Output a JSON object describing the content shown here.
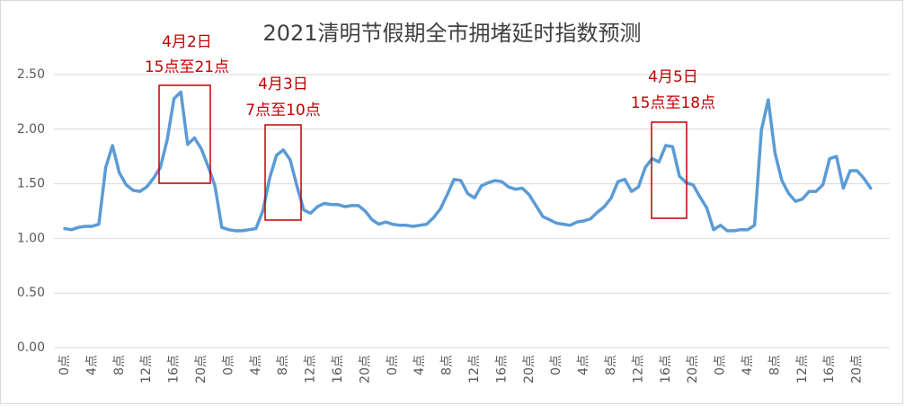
{
  "chart_data": {
    "type": "line",
    "title": "2021清明节假期全市拥堵延时指数预测",
    "categories": [
      "0点",
      null,
      null,
      null,
      "4点",
      null,
      null,
      null,
      "8点",
      null,
      null,
      null,
      "12点",
      null,
      null,
      null,
      "16点",
      null,
      null,
      null,
      "20点",
      null,
      null,
      null,
      "0点",
      null,
      null,
      null,
      "4点",
      null,
      null,
      null,
      "8点",
      null,
      null,
      null,
      "12点",
      null,
      null,
      null,
      "16点",
      null,
      null,
      null,
      "20点",
      null,
      null,
      null,
      "0点",
      null,
      null,
      null,
      "4点",
      null,
      null,
      null,
      "8点",
      null,
      null,
      null,
      "12点",
      null,
      null,
      null,
      "16点",
      null,
      null,
      null,
      "20点",
      null,
      null,
      null,
      "0点",
      null,
      null,
      null,
      "4点",
      null,
      null,
      null,
      "8点",
      null,
      null,
      null,
      "12点",
      null,
      null,
      null,
      "16点",
      null,
      null,
      null,
      "20点",
      null,
      null,
      null,
      "0点",
      null,
      null,
      null,
      "4点",
      null,
      null,
      null,
      "8点",
      null,
      null,
      null,
      "12点",
      null,
      null,
      null,
      "16点",
      null,
      null,
      null,
      "20点",
      null,
      null
    ],
    "values": [
      1.09,
      1.08,
      1.1,
      1.11,
      1.11,
      1.13,
      1.65,
      1.85,
      1.6,
      1.49,
      1.44,
      1.43,
      1.47,
      1.55,
      1.65,
      1.9,
      2.28,
      2.34,
      1.86,
      1.92,
      1.82,
      1.66,
      1.48,
      1.1,
      1.08,
      1.07,
      1.07,
      1.08,
      1.09,
      1.25,
      1.55,
      1.76,
      1.81,
      1.72,
      1.48,
      1.26,
      1.23,
      1.29,
      1.32,
      1.31,
      1.31,
      1.29,
      1.3,
      1.3,
      1.25,
      1.17,
      1.13,
      1.15,
      1.13,
      1.12,
      1.12,
      1.11,
      1.12,
      1.13,
      1.19,
      1.27,
      1.4,
      1.54,
      1.53,
      1.41,
      1.37,
      1.48,
      1.51,
      1.53,
      1.52,
      1.47,
      1.45,
      1.46,
      1.4,
      1.3,
      1.2,
      1.17,
      1.14,
      1.13,
      1.12,
      1.15,
      1.16,
      1.18,
      1.24,
      1.29,
      1.37,
      1.52,
      1.54,
      1.43,
      1.47,
      1.65,
      1.73,
      1.7,
      1.85,
      1.84,
      1.57,
      1.51,
      1.49,
      1.38,
      1.28,
      1.08,
      1.12,
      1.07,
      1.07,
      1.08,
      1.08,
      1.12,
      1.99,
      2.27,
      1.78,
      1.53,
      1.41,
      1.34,
      1.36,
      1.43,
      1.43,
      1.49,
      1.73,
      1.75,
      1.46,
      1.62,
      1.62,
      1.55,
      1.46
    ],
    "color": "#5b9bd5",
    "ylim": [
      0,
      2.5
    ],
    "yticks": [
      {
        "value": 0,
        "label": "0.00"
      },
      {
        "value": 0.5,
        "label": "0.50"
      },
      {
        "value": 1,
        "label": "1.00"
      },
      {
        "value": 1.5,
        "label": "1.50"
      },
      {
        "value": 2,
        "label": "2.00"
      },
      {
        "value": 2.5,
        "label": "2.50"
      }
    ],
    "grid": true,
    "annotations": [
      [
        "4月2日",
        "15点至21点"
      ],
      [
        "4月3日",
        "7点至10点"
      ],
      [
        "4月5日",
        "15点至18点"
      ]
    ]
  }
}
